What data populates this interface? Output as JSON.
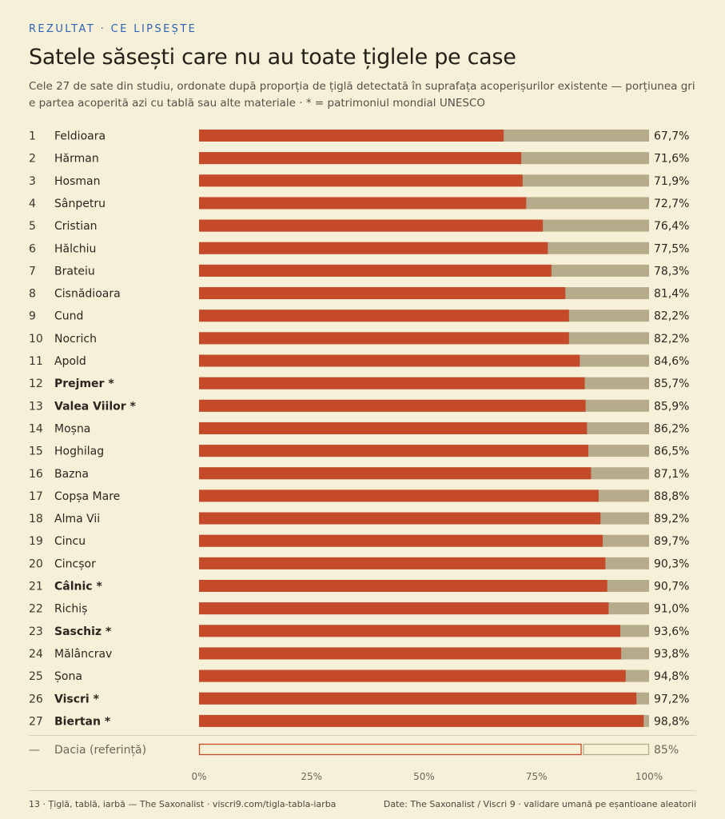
{
  "header": {
    "kicker": "REZULTAT · CE LIPSEȘTE",
    "title": "Satele săsești care nu au toate țiglele pe case",
    "subtitle": "Cele 27 de sate din studiu, ordonate după proporția de țiglă detectată în suprafața acoperișurilor existente — porțiunea gri e partea acoperită azi cu tablă sau alte materiale · * = patrimoniul mondial UNESCO"
  },
  "footer": {
    "left": "13 · Țiglă, tablă, iarbă — The Saxonalist · viscri9.com/tigla-tabla-iarba",
    "right": "Date: The Saxonalist / Viscri 9 · validare umană pe eșantioane aleatorii"
  },
  "colors": {
    "tile": "#c44a2a",
    "other": "#b6ab8b",
    "background": "#f7f0d8",
    "text": "#2a261f",
    "muted": "#6b665c",
    "kicker": "#2e63b3"
  },
  "chart_data": {
    "type": "bar",
    "orientation": "horizontal",
    "stacked": true,
    "xlim": [
      0,
      100
    ],
    "xticks": [
      "0%",
      "25%",
      "50%",
      "75%",
      "100%"
    ],
    "xtick_values": [
      0,
      25,
      50,
      75,
      100
    ],
    "rows": [
      {
        "rank": "1",
        "name": "Feldioara",
        "value": 67.7,
        "label": "67,7%",
        "unesco": false
      },
      {
        "rank": "2",
        "name": "Hărman",
        "value": 71.6,
        "label": "71,6%",
        "unesco": false
      },
      {
        "rank": "3",
        "name": "Hosman",
        "value": 71.9,
        "label": "71,9%",
        "unesco": false
      },
      {
        "rank": "4",
        "name": "Sânpetru",
        "value": 72.7,
        "label": "72,7%",
        "unesco": false
      },
      {
        "rank": "5",
        "name": "Cristian",
        "value": 76.4,
        "label": "76,4%",
        "unesco": false
      },
      {
        "rank": "6",
        "name": "Hălchiu",
        "value": 77.5,
        "label": "77,5%",
        "unesco": false
      },
      {
        "rank": "7",
        "name": "Brateiu",
        "value": 78.3,
        "label": "78,3%",
        "unesco": false
      },
      {
        "rank": "8",
        "name": "Cisnădioara",
        "value": 81.4,
        "label": "81,4%",
        "unesco": false
      },
      {
        "rank": "9",
        "name": "Cund",
        "value": 82.2,
        "label": "82,2%",
        "unesco": false
      },
      {
        "rank": "10",
        "name": "Nocrich",
        "value": 82.2,
        "label": "82,2%",
        "unesco": false
      },
      {
        "rank": "11",
        "name": "Apold",
        "value": 84.6,
        "label": "84,6%",
        "unesco": false
      },
      {
        "rank": "12",
        "name": "Prejmer *",
        "value": 85.7,
        "label": "85,7%",
        "unesco": true
      },
      {
        "rank": "13",
        "name": "Valea Viilor *",
        "value": 85.9,
        "label": "85,9%",
        "unesco": true
      },
      {
        "rank": "14",
        "name": "Moșna",
        "value": 86.2,
        "label": "86,2%",
        "unesco": false
      },
      {
        "rank": "15",
        "name": "Hoghilag",
        "value": 86.5,
        "label": "86,5%",
        "unesco": false
      },
      {
        "rank": "16",
        "name": "Bazna",
        "value": 87.1,
        "label": "87,1%",
        "unesco": false
      },
      {
        "rank": "17",
        "name": "Copșa Mare",
        "value": 88.8,
        "label": "88,8%",
        "unesco": false
      },
      {
        "rank": "18",
        "name": "Alma Vii",
        "value": 89.2,
        "label": "89,2%",
        "unesco": false
      },
      {
        "rank": "19",
        "name": "Cincu",
        "value": 89.7,
        "label": "89,7%",
        "unesco": false
      },
      {
        "rank": "20",
        "name": "Cincșor",
        "value": 90.3,
        "label": "90,3%",
        "unesco": false
      },
      {
        "rank": "21",
        "name": "Câlnic *",
        "value": 90.7,
        "label": "90,7%",
        "unesco": true
      },
      {
        "rank": "22",
        "name": "Richiș",
        "value": 91.0,
        "label": "91,0%",
        "unesco": false
      },
      {
        "rank": "23",
        "name": "Saschiz *",
        "value": 93.6,
        "label": "93,6%",
        "unesco": true
      },
      {
        "rank": "24",
        "name": "Mălâncrav",
        "value": 93.8,
        "label": "93,8%",
        "unesco": false
      },
      {
        "rank": "25",
        "name": "Șona",
        "value": 94.8,
        "label": "94,8%",
        "unesco": false
      },
      {
        "rank": "26",
        "name": "Viscri *",
        "value": 97.2,
        "label": "97,2%",
        "unesco": true
      },
      {
        "rank": "27",
        "name": "Biertan *",
        "value": 98.8,
        "label": "98,8%",
        "unesco": true
      }
    ],
    "reference": {
      "rank": "—",
      "name": "Dacia (referință)",
      "value": 85,
      "label": "85%"
    }
  }
}
